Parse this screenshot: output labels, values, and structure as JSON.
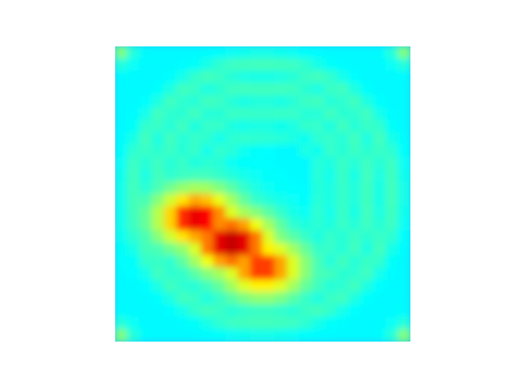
{
  "chart_data": {
    "type": "heatmap",
    "title": "",
    "xlabel": "",
    "ylabel": "",
    "axes_visible": false,
    "colorbar": false,
    "colormap": "jet",
    "colormap_stops": [
      "#00007f",
      "#0000ff",
      "#00ffff",
      "#7fff7f",
      "#ffff00",
      "#ff0000",
      "#7f0000"
    ],
    "grid_shape": [
      24,
      24
    ],
    "value_range": [
      0,
      1
    ],
    "background_level": 0.33,
    "features": [
      {
        "kind": "corner-spot",
        "row": 0,
        "col": 0,
        "value": 0.5
      },
      {
        "kind": "corner-spot",
        "row": 0,
        "col": 23,
        "value": 0.5
      },
      {
        "kind": "corner-spot",
        "row": 23,
        "col": 0,
        "value": 0.5
      },
      {
        "kind": "corner-spot",
        "row": 23,
        "col": 23,
        "value": 0.5
      },
      {
        "kind": "ring",
        "center_row": 11.5,
        "center_col": 11.5,
        "radius": 10.5,
        "value": 0.42
      },
      {
        "kind": "ring",
        "center_row": 11.5,
        "center_col": 11.5,
        "radius": 8.6,
        "value": 0.42
      },
      {
        "kind": "ring",
        "center_row": 11.5,
        "center_col": 11.5,
        "radius": 6.8,
        "value": 0.41
      },
      {
        "kind": "ring",
        "center_row": 11.5,
        "center_col": 11.5,
        "radius": 4.8,
        "value": 0.4
      },
      {
        "kind": "cool-spot",
        "row": 10.5,
        "col": 13.8,
        "value": 0.22
      },
      {
        "kind": "hot-region",
        "row": 15.5,
        "col": 9.0,
        "value": 0.93
      },
      {
        "kind": "hot-region",
        "row": 13.5,
        "col": 6.2,
        "value": 0.88
      },
      {
        "kind": "hot-region",
        "row": 17.5,
        "col": 11.5,
        "value": 0.82
      }
    ]
  }
}
